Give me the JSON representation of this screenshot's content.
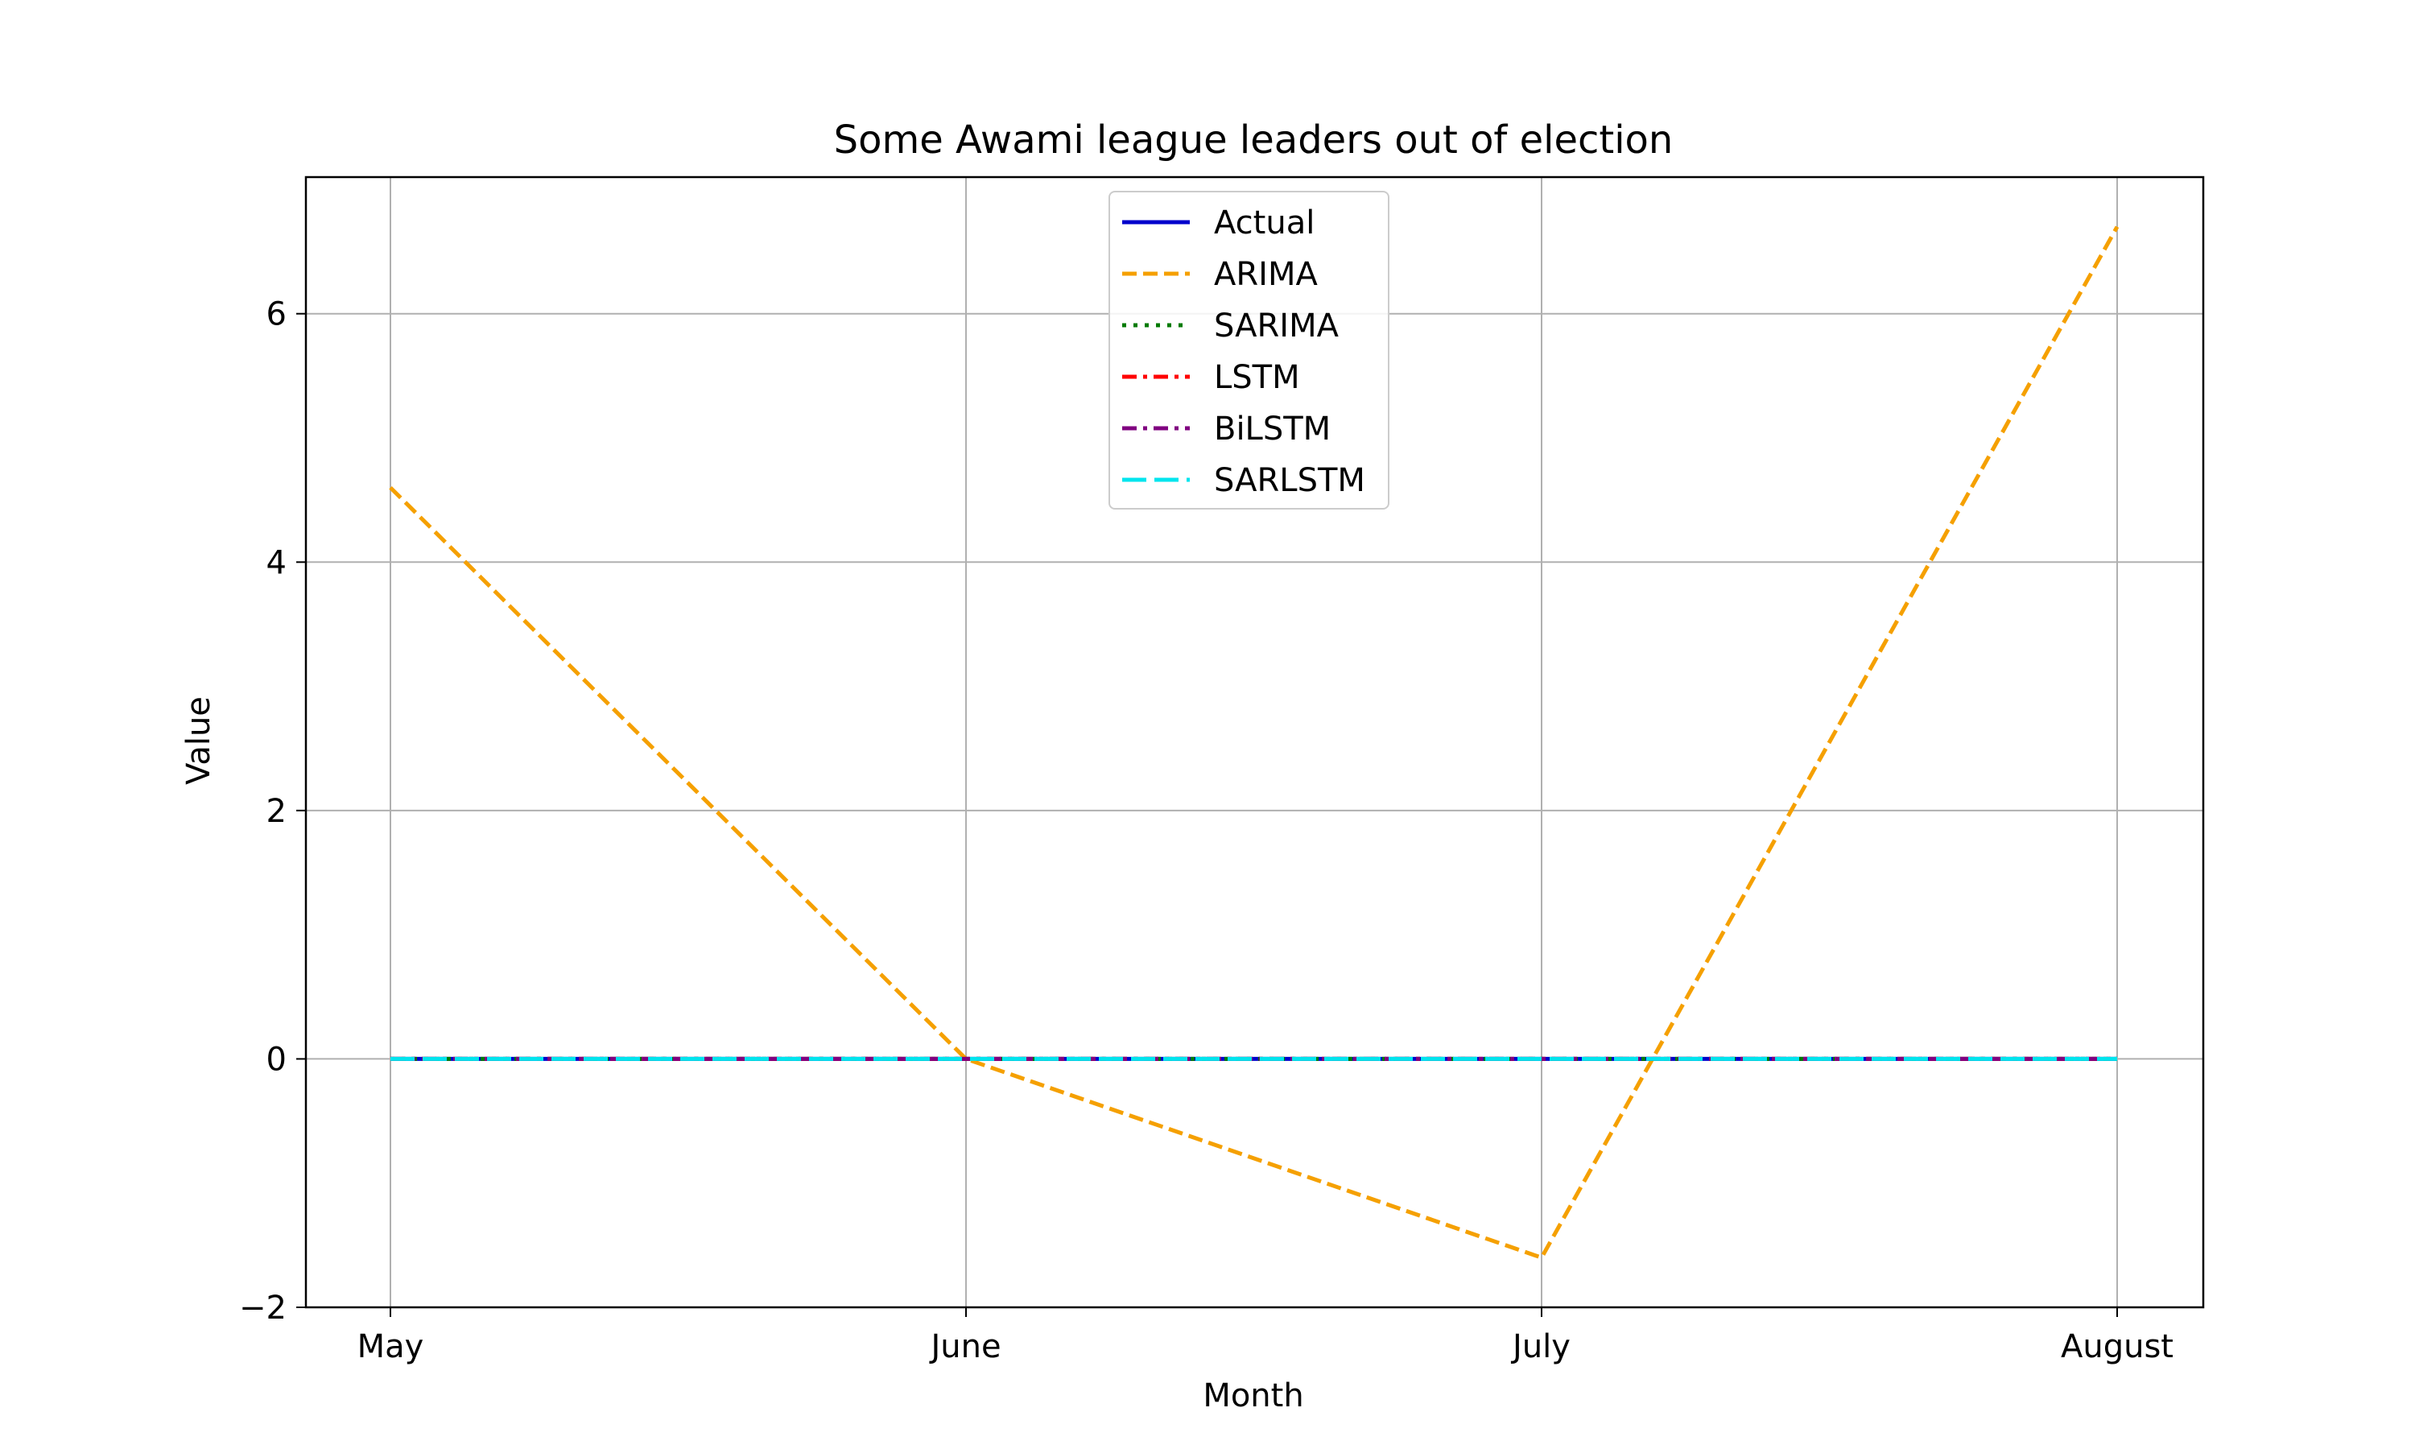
{
  "chart_data": {
    "type": "line",
    "title": "Some Awami league leaders out of election",
    "xlabel": "Month",
    "ylabel": "Value",
    "categories": [
      "May",
      "June",
      "July",
      "August"
    ],
    "ylim": [
      -2.0,
      7.1
    ],
    "yticks": [
      -2,
      0,
      2,
      4,
      6
    ],
    "ytick_labels": [
      "−2",
      "0",
      "2",
      "4",
      "6"
    ],
    "grid": true,
    "legend_position": "top-center",
    "series": [
      {
        "name": "Actual",
        "values": [
          0,
          0,
          0,
          0
        ],
        "color": "#0000cc",
        "style": "solid"
      },
      {
        "name": "ARIMA",
        "values": [
          4.6,
          0,
          -1.6,
          6.7
        ],
        "color": "#f5a000",
        "style": "dashed"
      },
      {
        "name": "SARIMA",
        "values": [
          0,
          0,
          0,
          0
        ],
        "color": "#007a00",
        "style": "dotted"
      },
      {
        "name": "LSTM",
        "values": [
          0,
          0,
          0,
          0
        ],
        "color": "#ff0000",
        "style": "dashdot"
      },
      {
        "name": "BiLSTM",
        "values": [
          0,
          0,
          0,
          0
        ],
        "color": "#800080",
        "style": "dashdot"
      },
      {
        "name": "SARLSTM",
        "values": [
          0,
          0,
          0,
          0
        ],
        "color": "#00e5ee",
        "style": "longdash"
      }
    ]
  }
}
